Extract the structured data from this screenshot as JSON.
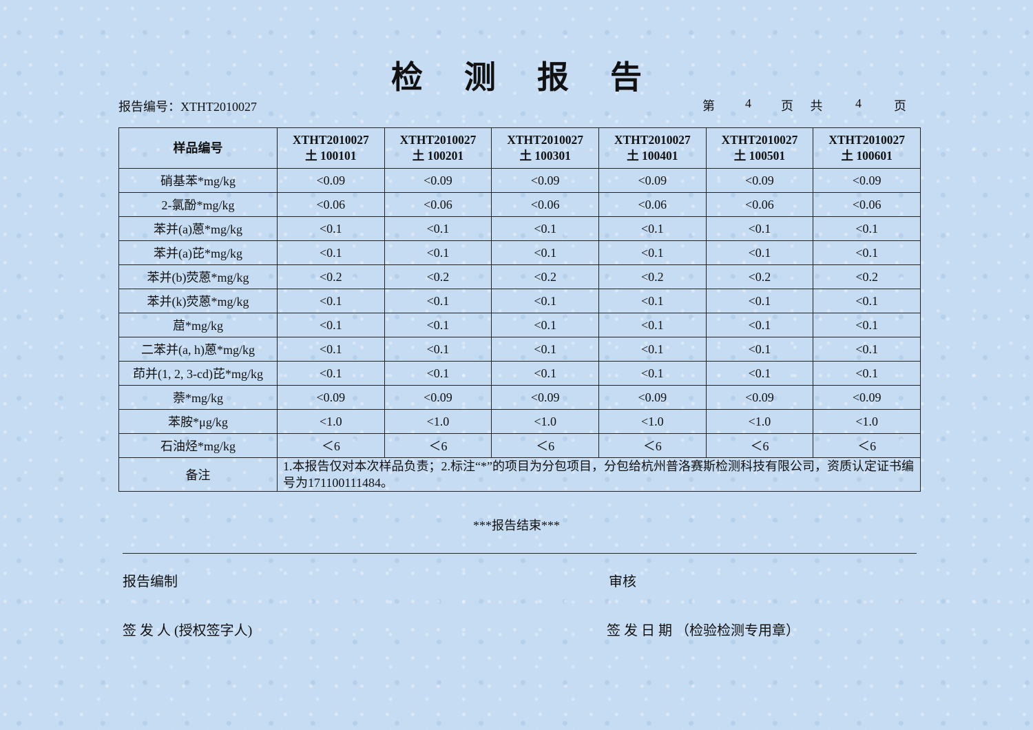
{
  "title": "检 测 报 告",
  "report_no": "报告编号：XTHT2010027",
  "page_info": {
    "prefix": "第",
    "current": "4",
    "mid": "页 共",
    "total": "4",
    "suffix": "页"
  },
  "table": {
    "corner_header": "样品编号",
    "columns": [
      {
        "line1": "XTHT2010027",
        "line2": "土 100101"
      },
      {
        "line1": "XTHT2010027",
        "line2": "土 100201"
      },
      {
        "line1": "XTHT2010027",
        "line2": "土 100301"
      },
      {
        "line1": "XTHT2010027",
        "line2": "土 100401"
      },
      {
        "line1": "XTHT2010027",
        "line2": "土 100501"
      },
      {
        "line1": "XTHT2010027",
        "line2": "土 100601"
      }
    ],
    "rows": [
      {
        "label": "硝基苯*mg/kg",
        "values": [
          "<0.09",
          "<0.09",
          "<0.09",
          "<0.09",
          "<0.09",
          "<0.09"
        ]
      },
      {
        "label": "2-氯酚*mg/kg",
        "values": [
          "<0.06",
          "<0.06",
          "<0.06",
          "<0.06",
          "<0.06",
          "<0.06"
        ]
      },
      {
        "label": "苯并(a)蒽*mg/kg",
        "values": [
          "<0.1",
          "<0.1",
          "<0.1",
          "<0.1",
          "<0.1",
          "<0.1"
        ]
      },
      {
        "label": "苯并(a)芘*mg/kg",
        "values": [
          "<0.1",
          "<0.1",
          "<0.1",
          "<0.1",
          "<0.1",
          "<0.1"
        ]
      },
      {
        "label": "苯并(b)荧蒽*mg/kg",
        "values": [
          "<0.2",
          "<0.2",
          "<0.2",
          "<0.2",
          "<0.2",
          "<0.2"
        ]
      },
      {
        "label": "苯并(k)荧蒽*mg/kg",
        "values": [
          "<0.1",
          "<0.1",
          "<0.1",
          "<0.1",
          "<0.1",
          "<0.1"
        ]
      },
      {
        "label": "䓛*mg/kg",
        "values": [
          "<0.1",
          "<0.1",
          "<0.1",
          "<0.1",
          "<0.1",
          "<0.1"
        ]
      },
      {
        "label": "二苯并(a, h)蒽*mg/kg",
        "values": [
          "<0.1",
          "<0.1",
          "<0.1",
          "<0.1",
          "<0.1",
          "<0.1"
        ]
      },
      {
        "label": "茚并(1, 2, 3-cd)芘*mg/kg",
        "values": [
          "<0.1",
          "<0.1",
          "<0.1",
          "<0.1",
          "<0.1",
          "<0.1"
        ]
      },
      {
        "label": "萘*mg/kg",
        "values": [
          "<0.09",
          "<0.09",
          "<0.09",
          "<0.09",
          "<0.09",
          "<0.09"
        ]
      },
      {
        "label": "苯胺*μg/kg",
        "values": [
          "<1.0",
          "<1.0",
          "<1.0",
          "<1.0",
          "<1.0",
          "<1.0"
        ]
      },
      {
        "label": "石油烃*mg/kg",
        "values": [
          "＜6",
          "＜6",
          "＜6",
          "＜6",
          "＜6",
          "＜6"
        ]
      }
    ],
    "remarks_label": "备注",
    "remarks_text": "1.本报告仅对本次样品负责；2.标注“*”的项目为分包项目，分包给杭州普洛赛斯检测科技有限公司，资质认定证书编号为171100111484。"
  },
  "end_text": "***报告结束***",
  "signatures": {
    "prepared_by": "报告编制",
    "reviewed_by": "审核",
    "issuer": "签 发 人 (授权签字人)",
    "issue_date": "签 发 日 期 （检验检测专用章）"
  }
}
